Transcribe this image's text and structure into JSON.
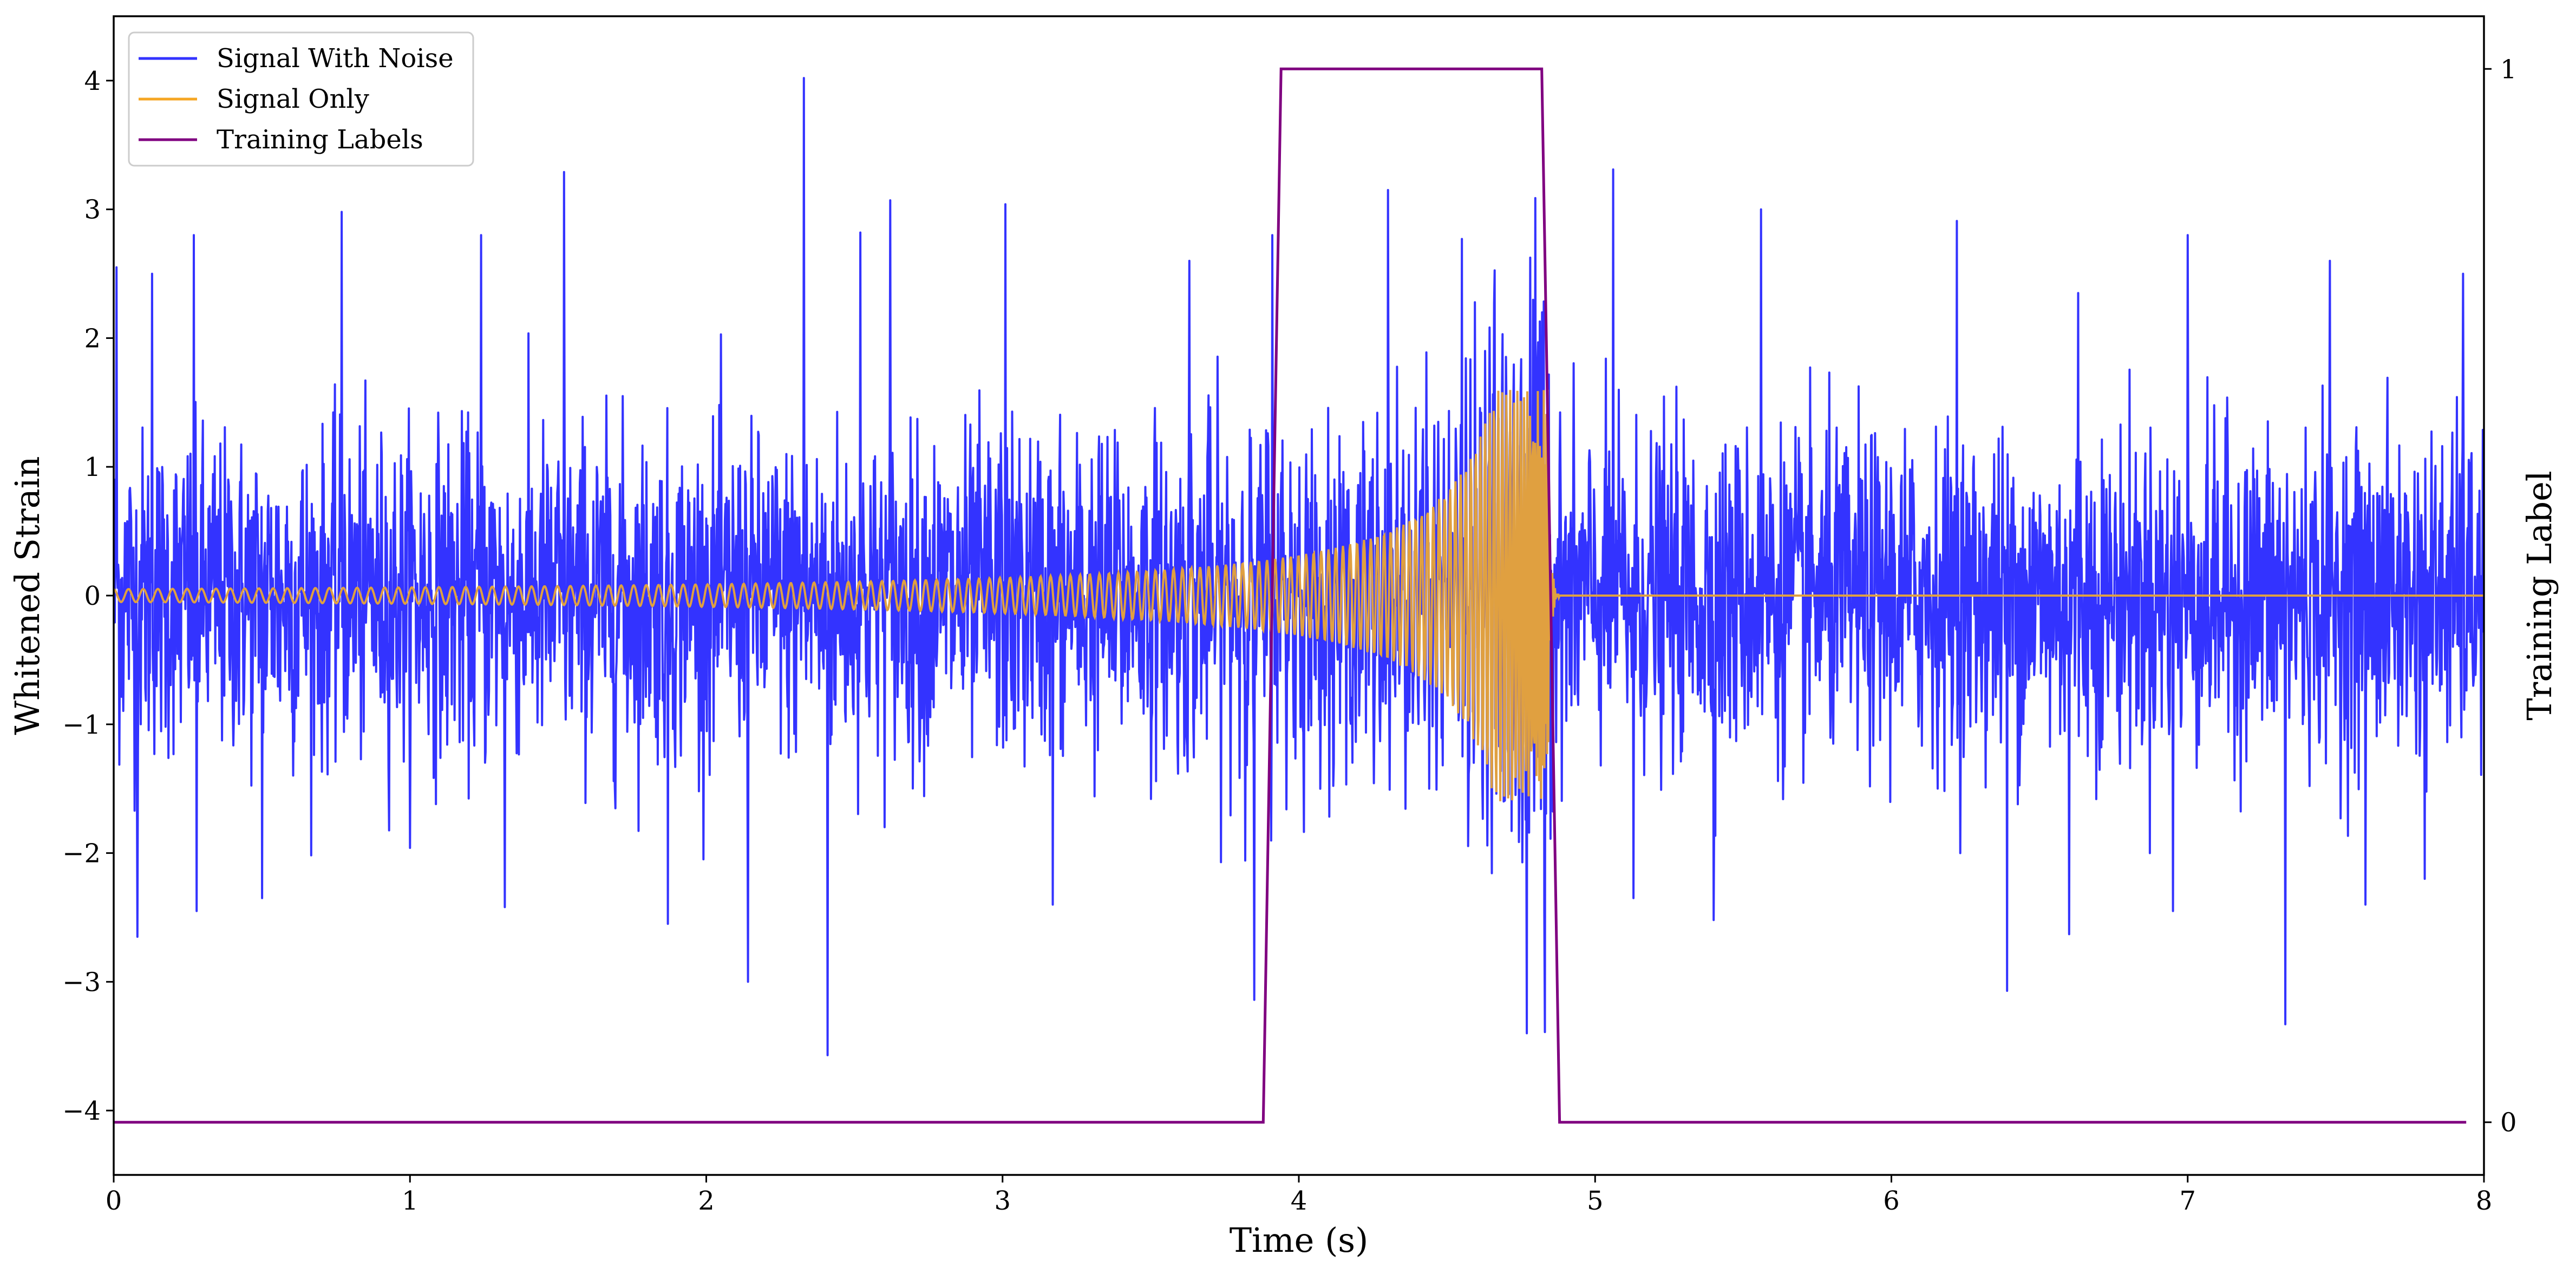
{
  "chart_data": {
    "type": "line",
    "title": "",
    "xlabel": "Time (s)",
    "ylabel": "Whitened Strain",
    "y2label": "Training Label",
    "xlim": [
      0,
      8
    ],
    "ylim": [
      -4.5,
      4.5
    ],
    "y2lim": [
      -0.05,
      1.05
    ],
    "xticks": [
      0,
      1,
      2,
      3,
      4,
      5,
      6,
      7,
      8
    ],
    "xtick_labels": [
      "0",
      "1",
      "2",
      "3",
      "4",
      "5",
      "6",
      "7",
      "8"
    ],
    "yticks": [
      -4,
      -3,
      -2,
      -1,
      0,
      1,
      2,
      3,
      4
    ],
    "ytick_labels": [
      "−4",
      "−3",
      "−2",
      "−1",
      "0",
      "1",
      "2",
      "3",
      "4"
    ],
    "y2ticks": [
      0,
      1
    ],
    "y2tick_labels": [
      "0",
      "1"
    ],
    "grid": false,
    "legend_position": "top-left",
    "series": [
      {
        "name": "Signal With Noise",
        "color": "#3333ff",
        "axis": "left",
        "description_values": {
          "x_range": [
            0,
            8
          ],
          "typical_amplitude_range": [
            -1.5,
            2.2
          ],
          "peaks": [
            {
              "x": 0.01,
              "y": 2.55
            },
            {
              "x": 0.13,
              "y": 2.5
            },
            {
              "x": 0.27,
              "y": 2.8
            },
            {
              "x": 0.77,
              "y": 2.98
            },
            {
              "x": 1.24,
              "y": 2.8
            },
            {
              "x": 1.52,
              "y": 3.29
            },
            {
              "x": 2.33,
              "y": 4.02
            },
            {
              "x": 2.52,
              "y": 2.82
            },
            {
              "x": 2.62,
              "y": 3.07
            },
            {
              "x": 3.01,
              "y": 3.04
            },
            {
              "x": 3.63,
              "y": 2.6
            },
            {
              "x": 3.91,
              "y": 2.8
            },
            {
              "x": 4.3,
              "y": 3.15
            },
            {
              "x": 4.55,
              "y": 2.77
            },
            {
              "x": 4.82,
              "y": 2.2
            },
            {
              "x": 5.06,
              "y": 3.31
            },
            {
              "x": 5.56,
              "y": 3.0
            },
            {
              "x": 6.22,
              "y": 2.91
            },
            {
              "x": 6.63,
              "y": 2.35
            },
            {
              "x": 7.0,
              "y": 2.8
            },
            {
              "x": 7.48,
              "y": 2.6
            },
            {
              "x": 7.93,
              "y": 2.5
            }
          ],
          "troughs": [
            {
              "x": 0.08,
              "y": -2.65
            },
            {
              "x": 0.28,
              "y": -2.45
            },
            {
              "x": 0.5,
              "y": -2.35
            },
            {
              "x": 1.32,
              "y": -2.42
            },
            {
              "x": 1.87,
              "y": -2.55
            },
            {
              "x": 2.14,
              "y": -3.0
            },
            {
              "x": 2.41,
              "y": -3.57
            },
            {
              "x": 3.17,
              "y": -2.4
            },
            {
              "x": 3.85,
              "y": -3.14
            },
            {
              "x": 4.77,
              "y": -3.4
            },
            {
              "x": 4.83,
              "y": -3.39
            },
            {
              "x": 5.13,
              "y": -2.35
            },
            {
              "x": 5.4,
              "y": -2.52
            },
            {
              "x": 6.39,
              "y": -3.07
            },
            {
              "x": 6.6,
              "y": -2.63
            },
            {
              "x": 6.95,
              "y": -2.45
            },
            {
              "x": 7.33,
              "y": -3.33
            },
            {
              "x": 7.6,
              "y": -2.4
            },
            {
              "x": 7.8,
              "y": -2.2
            }
          ]
        }
      },
      {
        "name": "Signal Only",
        "color": "#f5a623",
        "axis": "left",
        "waveform": {
          "type": "chirp",
          "t_merger": 4.84,
          "frequency_hz_start": 20,
          "amplitude_start": 0.05,
          "amplitude_peak": 1.6,
          "amplitude_after": 0.0
        }
      },
      {
        "name": "Training Labels",
        "color": "#800080",
        "axis": "right",
        "points": [
          {
            "x": 0.0,
            "y": 0
          },
          {
            "x": 3.88,
            "y": 0
          },
          {
            "x": 3.94,
            "y": 1
          },
          {
            "x": 4.82,
            "y": 1
          },
          {
            "x": 4.88,
            "y": 0
          },
          {
            "x": 7.94,
            "y": 0
          }
        ]
      }
    ]
  }
}
